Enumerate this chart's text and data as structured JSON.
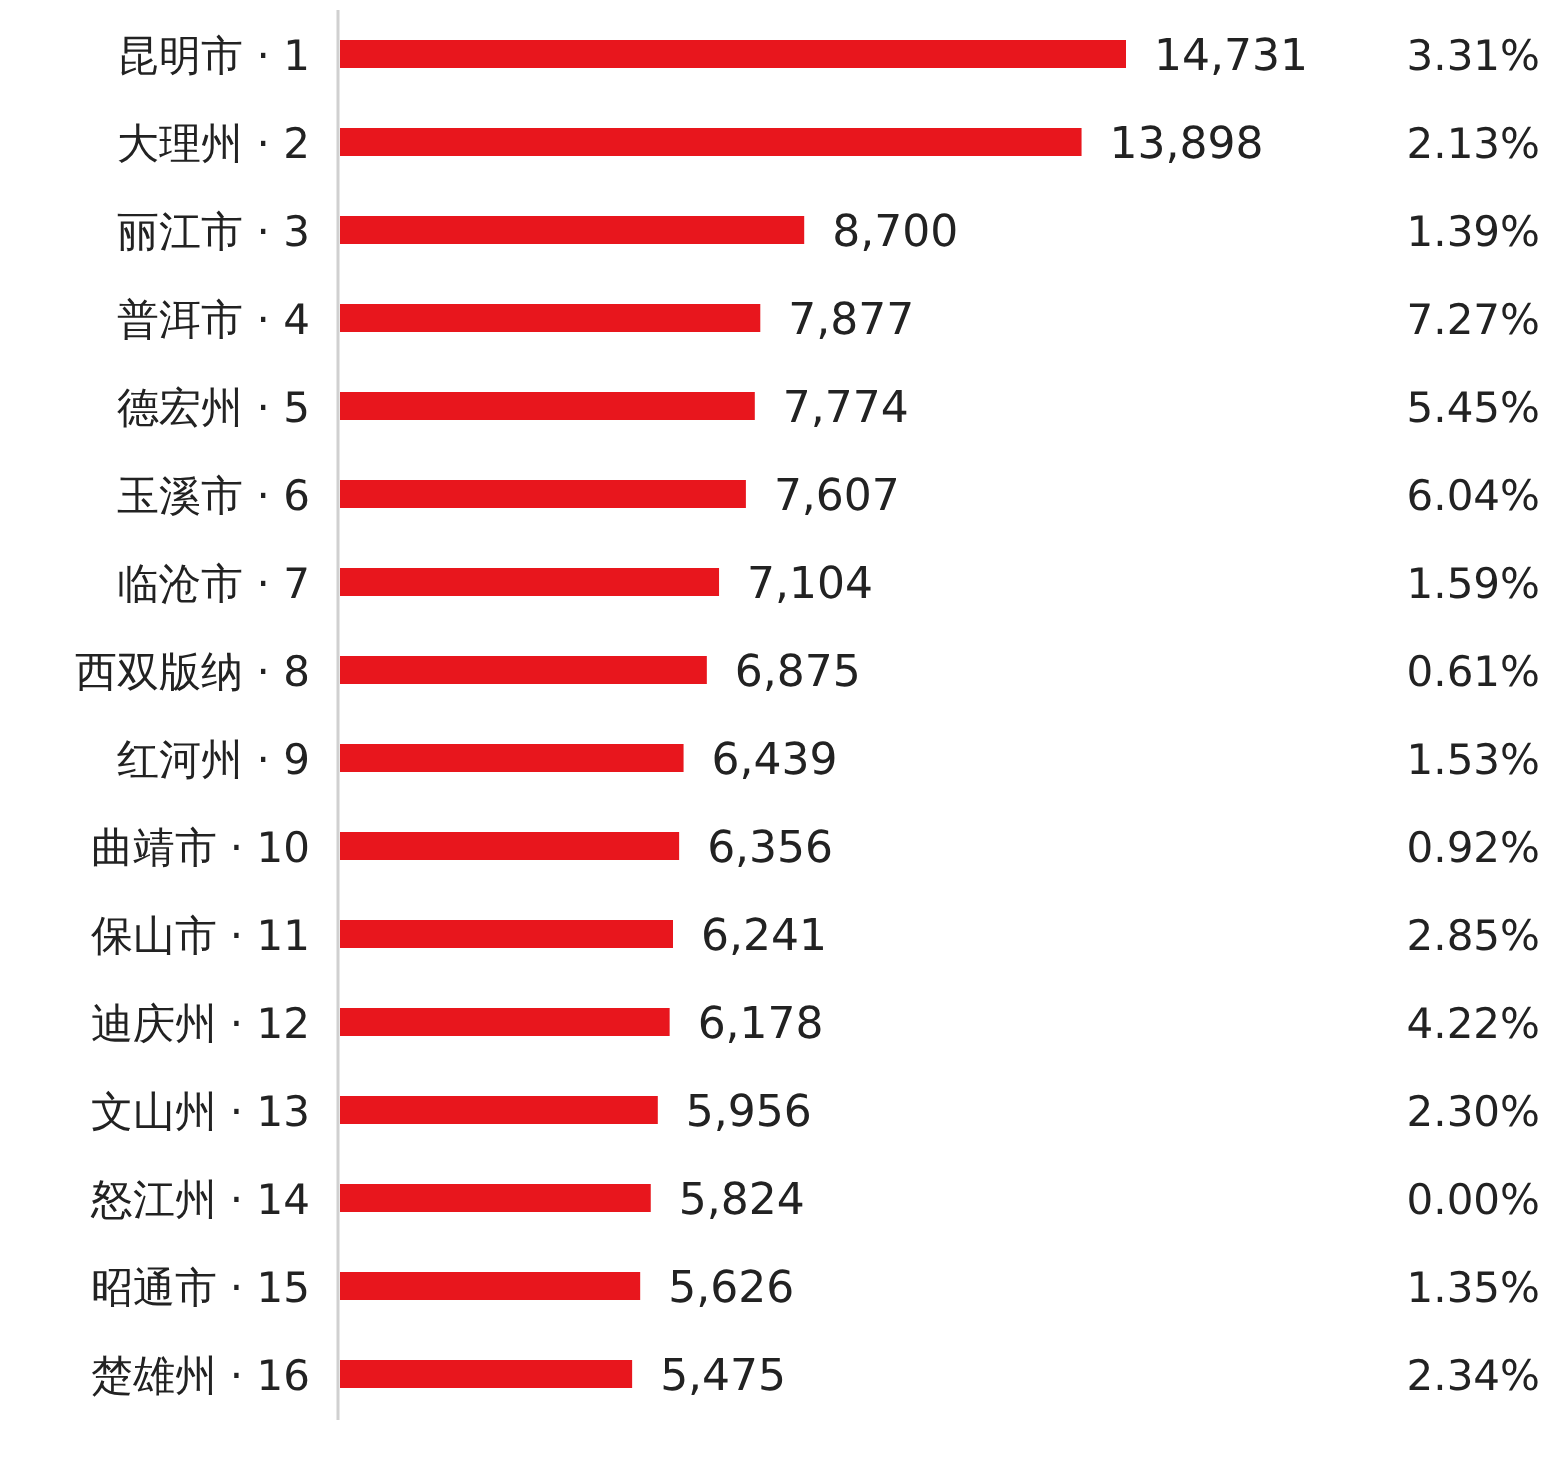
{
  "chart_data": {
    "type": "bar",
    "orientation": "horizontal",
    "color": "#e8161d",
    "categories": [
      "昆明市 · 1",
      "大理州 · 2",
      "丽江市 · 3",
      "普洱市 · 4",
      "德宏州 · 5",
      "玉溪市 · 6",
      "临沧市 · 7",
      "西双版纳 · 8",
      "红河州 · 9",
      "曲靖市 · 10",
      "保山市 · 11",
      "迪庆州 · 12",
      "文山州 · 13",
      "怒江州 · 14",
      "昭通市 · 15",
      "楚雄州 · 16"
    ],
    "values": [
      14731,
      13898,
      8700,
      7877,
      7774,
      7607,
      7104,
      6875,
      6439,
      6356,
      6241,
      6178,
      5956,
      5824,
      5626,
      5475
    ],
    "value_labels": [
      "14,731",
      "13,898",
      "8,700",
      "7,877",
      "7,774",
      "7,607",
      "7,104",
      "6,875",
      "6,439",
      "6,356",
      "6,241",
      "6,178",
      "5,956",
      "5,824",
      "5,626",
      "5,475"
    ],
    "annotations": [
      "3.31%",
      "2.13%",
      "1.39%",
      "7.27%",
      "5.45%",
      "6.04%",
      "1.59%",
      "0.61%",
      "1.53%",
      "0.92%",
      "2.85%",
      "4.22%",
      "2.30%",
      "0.00%",
      "1.35%",
      "2.34%"
    ]
  }
}
